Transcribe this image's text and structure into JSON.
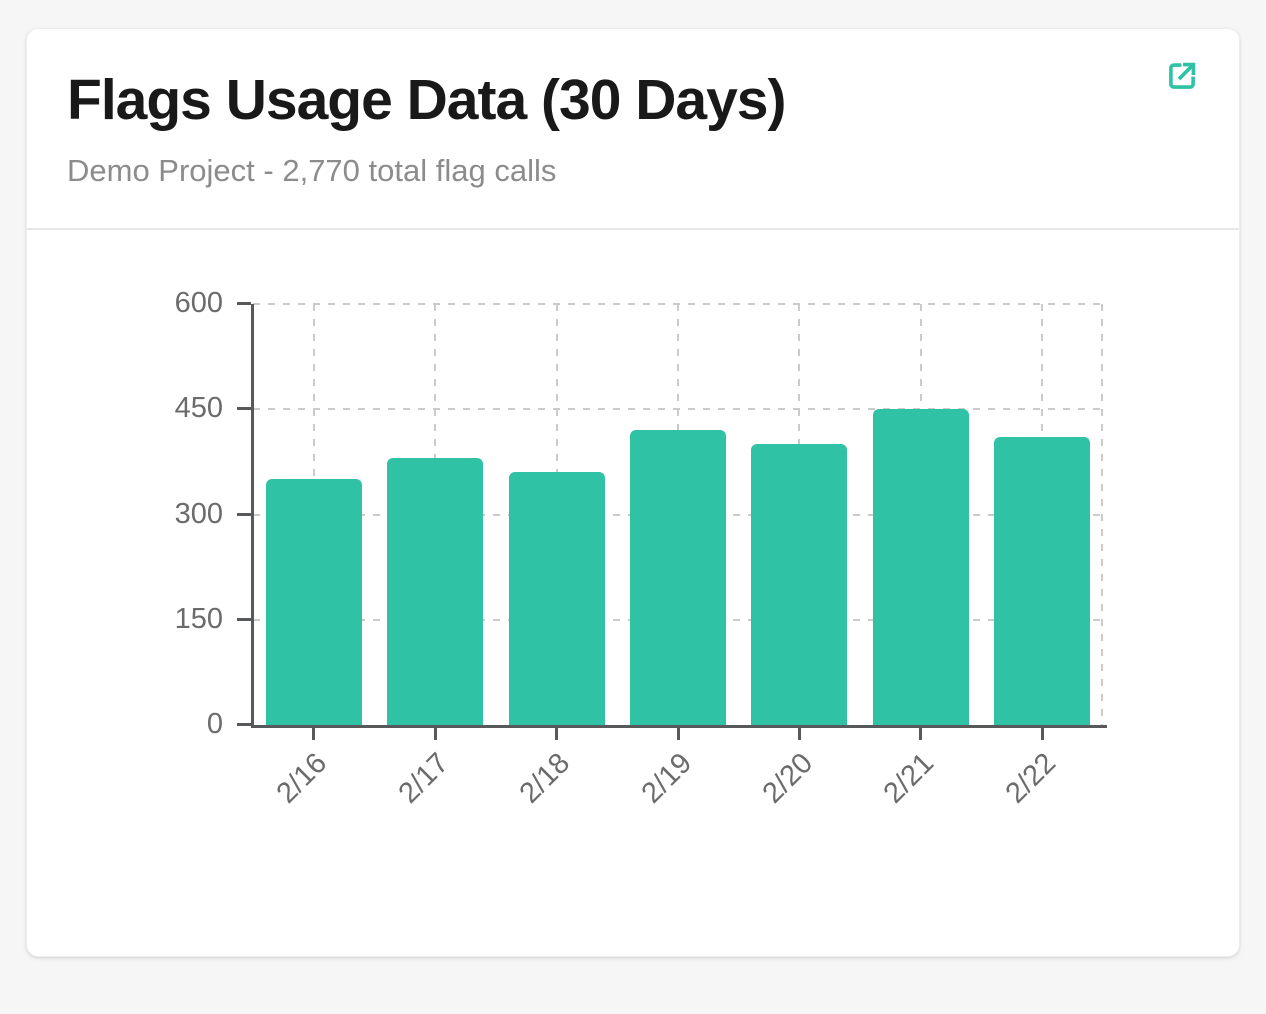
{
  "card": {
    "title": "Flags Usage Data (30 Days)",
    "subtitle": "Demo Project - 2,770 total flag calls"
  },
  "colors": {
    "accent": "#2FC2A4",
    "bar": "#2FC2A4",
    "background": "#F6F6F7",
    "card_background": "#FFFFFF",
    "axis": "#58595B",
    "tick_label": "#6B6B6B",
    "gridline": "#CBCBCB",
    "title_text": "#191919",
    "subtitle_text": "#8C8C8C",
    "divider": "#E7E7E8"
  },
  "chart_data": {
    "type": "bar",
    "title": "Flags Usage Data (30 Days)",
    "subtitle": "Demo Project - 2,770 total flag calls",
    "categories": [
      "2/16",
      "2/17",
      "2/18",
      "2/19",
      "2/20",
      "2/21",
      "2/22"
    ],
    "values": [
      350,
      380,
      360,
      420,
      400,
      450,
      410
    ],
    "total": 2770,
    "xlabel": "",
    "ylabel": "",
    "ylim": [
      0,
      600
    ],
    "y_ticks": [
      0,
      150,
      300,
      450,
      600
    ],
    "grid": "dashed",
    "legend": "none",
    "bar_color": "#2FC2A4"
  }
}
